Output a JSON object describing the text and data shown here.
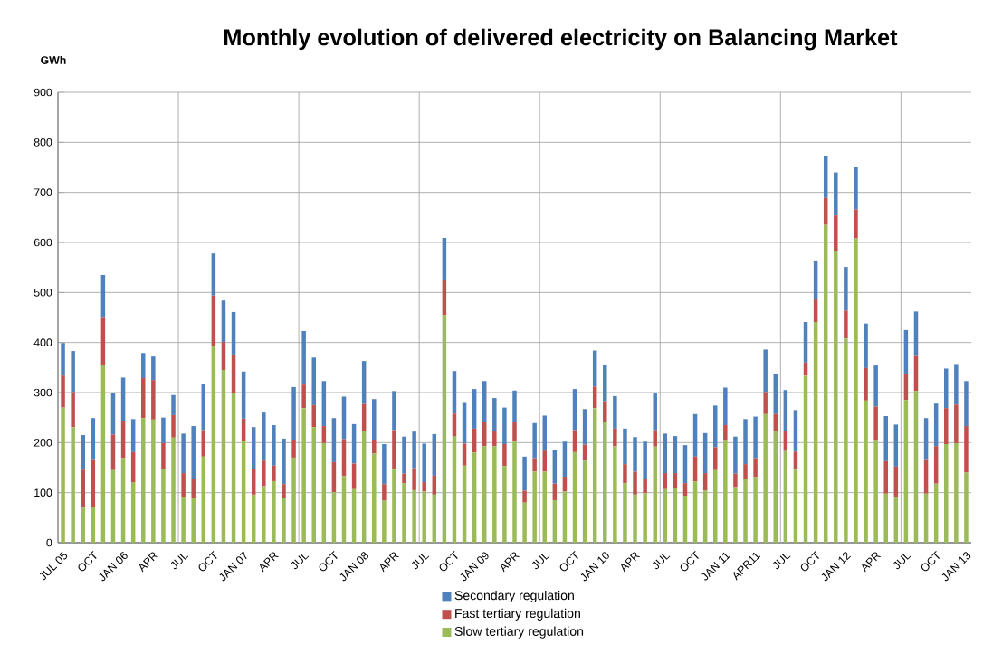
{
  "chart_data": {
    "type": "bar",
    "stacked": true,
    "title": "Monthly evolution of delivered electricity on Balancing Market",
    "ylabel": "GWh",
    "categories": [
      "JUL 05",
      null,
      null,
      "OCT",
      null,
      null,
      "JAN 06",
      null,
      null,
      "APR",
      null,
      null,
      "JUL",
      null,
      null,
      "OCT",
      null,
      null,
      "JAN 07",
      null,
      null,
      "APR",
      null,
      null,
      "JUL",
      null,
      null,
      "OCT",
      null,
      null,
      "JAN 08",
      null,
      null,
      "APR",
      null,
      null,
      "JUL",
      null,
      null,
      "OCT",
      null,
      null,
      "JAN 09",
      null,
      null,
      "APR",
      null,
      null,
      "JUL",
      null,
      null,
      "OCT",
      null,
      null,
      "JAN 10",
      null,
      null,
      "APR",
      null,
      null,
      "JUL",
      null,
      null,
      "OCT",
      null,
      null,
      "JAN 11",
      null,
      null,
      "APR11",
      null,
      null,
      "JUL",
      null,
      null,
      "OCT",
      null,
      null,
      "JAN 12",
      null,
      null,
      "APR",
      null,
      null,
      "JUL",
      null,
      null,
      "OCT",
      null,
      null,
      "JAN 13"
    ],
    "series": [
      {
        "name": "Slow tertiary regulation",
        "color": "#9bbb59",
        "values": [
          270,
          231,
          70,
          72,
          354,
          145,
          169,
          120,
          249,
          246,
          148,
          210,
          92,
          89,
          172,
          394,
          345,
          300,
          204,
          96,
          113,
          123,
          89,
          170,
          269,
          231,
          199,
          101,
          133,
          107,
          224,
          178,
          84,
          146,
          119,
          105,
          102,
          96,
          455,
          212,
          154,
          180,
          193,
          193,
          153,
          202,
          80,
          142,
          142,
          85,
          102,
          181,
          164,
          269,
          241,
          193,
          119,
          96,
          99,
          192,
          107,
          110,
          94,
          122,
          104,
          145,
          205,
          111,
          128,
          131,
          257,
          224,
          183,
          146,
          334,
          441,
          635,
          582,
          408,
          608,
          284,
          205,
          98,
          92,
          285,
          303,
          98,
          118,
          197,
          199,
          140
        ]
      },
      {
        "name": "Fast tertiary regulation",
        "color": "#c0504d",
        "values": [
          64,
          70,
          76,
          95,
          97,
          71,
          75,
          61,
          80,
          79,
          51,
          45,
          47,
          39,
          53,
          100,
          56,
          76,
          44,
          52,
          51,
          31,
          28,
          36,
          47,
          44,
          34,
          60,
          74,
          51,
          53,
          28,
          33,
          79,
          19,
          44,
          19,
          38,
          71,
          46,
          44,
          48,
          49,
          30,
          44,
          40,
          24,
          27,
          42,
          33,
          30,
          44,
          32,
          43,
          42,
          35,
          38,
          46,
          29,
          33,
          32,
          29,
          25,
          50,
          35,
          46,
          30,
          27,
          29,
          38,
          44,
          33,
          40,
          36,
          26,
          45,
          54,
          72,
          56,
          58,
          65,
          67,
          65,
          60,
          53,
          70,
          69,
          75,
          72,
          77,
          93
        ]
      },
      {
        "name": "Secondary regulation",
        "color": "#4f81bd",
        "values": [
          65,
          82,
          69,
          82,
          84,
          83,
          86,
          66,
          50,
          47,
          51,
          40,
          79,
          105,
          92,
          84,
          83,
          85,
          94,
          83,
          96,
          81,
          91,
          105,
          107,
          95,
          90,
          88,
          85,
          79,
          86,
          81,
          80,
          78,
          74,
          73,
          77,
          83,
          83,
          85,
          83,
          79,
          81,
          66,
          73,
          62,
          68,
          70,
          70,
          68,
          70,
          82,
          71,
          72,
          72,
          65,
          71,
          69,
          74,
          73,
          79,
          74,
          76,
          85,
          80,
          83,
          75,
          74,
          90,
          83,
          85,
          81,
          82,
          83,
          81,
          78,
          83,
          86,
          87,
          84,
          89,
          82,
          90,
          84,
          87,
          89,
          82,
          85,
          79,
          81,
          90
        ]
      }
    ],
    "ylim": [
      0,
      900
    ],
    "yticks": [
      0,
      100,
      200,
      300,
      400,
      500,
      600,
      700,
      800,
      900
    ],
    "grid": true,
    "legend": "bottom"
  }
}
